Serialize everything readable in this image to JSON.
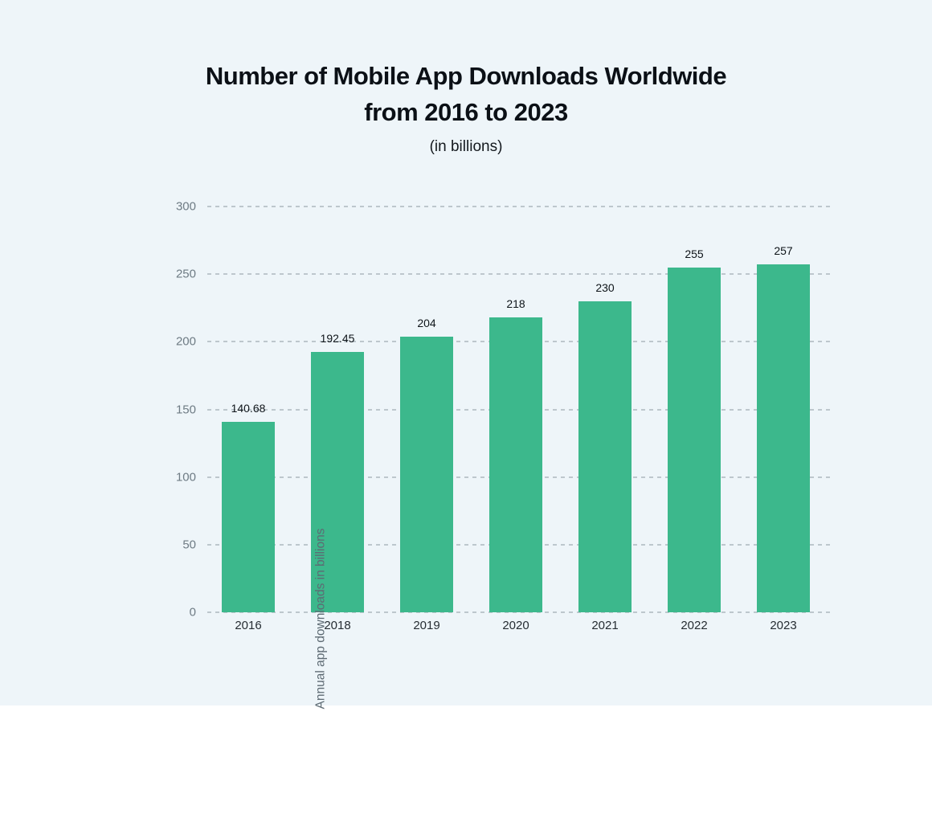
{
  "page": {
    "background_color": "#eef5f9"
  },
  "header": {
    "title_line1": "Number of Mobile App Downloads Worldwide",
    "title_line2": "from 2016 to 2023",
    "subtitle": "(in billions)"
  },
  "chart_data": {
    "type": "bar",
    "title": "Number of Mobile App Downloads Worldwide from 2016 to 2023",
    "subtitle": "(in billions)",
    "categories": [
      "2016",
      "2018",
      "2019",
      "2020",
      "2021",
      "2022",
      "2023"
    ],
    "values": [
      140.68,
      192.45,
      204,
      218,
      230,
      255,
      257
    ],
    "value_labels": [
      "140.68",
      "192.45",
      "204",
      "218",
      "230",
      "255",
      "257"
    ],
    "xlabel": "",
    "ylabel": "Annual app downloads in billions",
    "ylim": [
      0,
      300
    ],
    "yticks": [
      0,
      50,
      100,
      150,
      200,
      250,
      300
    ],
    "grid": "horizontal-dashed",
    "legend_position": "none",
    "bar_color": "#3cb88c",
    "gridline_color": "#bdc7cd",
    "ytick_label_color": "#6e7b84",
    "xtick_label_color": "#262d33",
    "value_label_color": "#0e1419"
  }
}
